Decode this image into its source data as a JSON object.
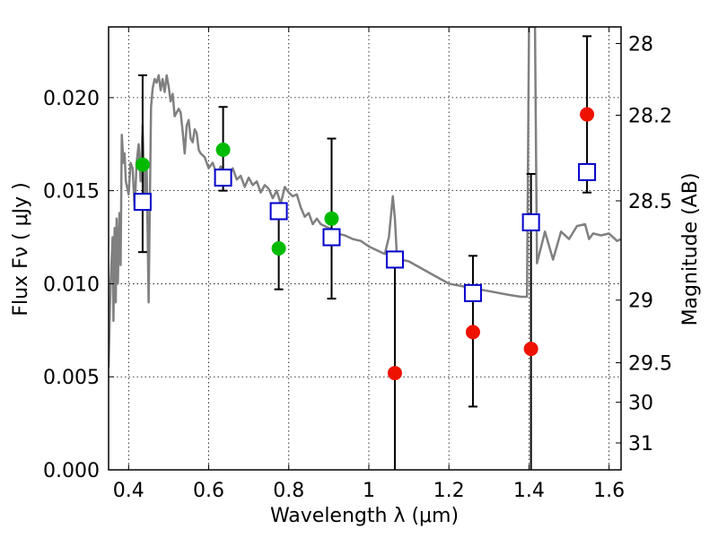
{
  "chart_data": {
    "type": "scatter",
    "x_axis": {
      "label": "Wavelength  λ (μm)",
      "range": [
        0.35,
        1.63
      ],
      "ticks": [
        0.4,
        0.6,
        0.8,
        1.0,
        1.2,
        1.4,
        1.6
      ],
      "tick_labels": [
        "0.4",
        "0.6",
        "0.8",
        "1",
        "1.2",
        "1.4",
        "1.6"
      ]
    },
    "y_axis": {
      "label": "Flux  Fν  ( μJy )",
      "range": [
        0.0,
        0.0238
      ],
      "ticks": [
        0.0,
        0.005,
        0.01,
        0.015,
        0.02
      ],
      "tick_labels": [
        "0.000",
        "0.005",
        "0.010",
        "0.015",
        "0.020"
      ]
    },
    "y2_axis": {
      "label": "Magnitude (AB)",
      "ticks": [
        28,
        28.2,
        28.5,
        29,
        29.5,
        30,
        31
      ],
      "tick_labels": [
        "28",
        "28.2",
        "28.5",
        "29",
        "29.5",
        "30",
        "31"
      ]
    },
    "grid": true,
    "series": [
      {
        "kind": "line",
        "color": "#808080",
        "x": [
          0.35,
          0.355,
          0.36,
          0.362,
          0.365,
          0.368,
          0.37,
          0.373,
          0.377,
          0.38,
          0.383,
          0.387,
          0.39,
          0.393,
          0.396,
          0.4,
          0.405,
          0.41,
          0.415,
          0.42,
          0.425,
          0.43,
          0.435,
          0.44,
          0.445,
          0.45,
          0.453,
          0.456,
          0.46,
          0.465,
          0.47,
          0.475,
          0.48,
          0.485,
          0.49,
          0.495,
          0.5,
          0.505,
          0.51,
          0.515,
          0.52,
          0.525,
          0.53,
          0.535,
          0.54,
          0.545,
          0.55,
          0.555,
          0.56,
          0.565,
          0.57,
          0.575,
          0.58,
          0.59,
          0.6,
          0.61,
          0.62,
          0.63,
          0.64,
          0.65,
          0.66,
          0.67,
          0.68,
          0.69,
          0.7,
          0.71,
          0.72,
          0.73,
          0.74,
          0.75,
          0.76,
          0.77,
          0.78,
          0.79,
          0.8,
          0.81,
          0.82,
          0.83,
          0.84,
          0.85,
          0.86,
          0.87,
          0.88,
          0.9,
          0.92,
          0.94,
          0.96,
          0.98,
          1.0,
          1.02,
          1.04,
          1.05,
          1.06,
          1.065,
          1.07,
          1.08,
          1.1,
          1.15,
          1.2,
          1.25,
          1.3,
          1.35,
          1.38,
          1.39,
          1.395,
          1.4,
          1.405,
          1.41,
          1.415,
          1.42,
          1.44,
          1.46,
          1.48,
          1.5,
          1.52,
          1.54,
          1.55,
          1.56,
          1.58,
          1.6,
          1.62,
          1.63
        ],
        "y": [
          0.0055,
          0.01,
          0.0125,
          0.008,
          0.013,
          0.009,
          0.0135,
          0.01,
          0.0138,
          0.011,
          0.018,
          0.0165,
          0.017,
          0.0155,
          0.0152,
          0.0148,
          0.0165,
          0.0162,
          0.014,
          0.0165,
          0.0175,
          0.0155,
          0.0185,
          0.0145,
          0.0165,
          0.009,
          0.014,
          0.0195,
          0.0205,
          0.021,
          0.0208,
          0.0212,
          0.0204,
          0.021,
          0.0203,
          0.0212,
          0.0206,
          0.0198,
          0.0202,
          0.019,
          0.0192,
          0.0194,
          0.0192,
          0.0182,
          0.017,
          0.0185,
          0.0188,
          0.0178,
          0.0176,
          0.0183,
          0.0181,
          0.0172,
          0.017,
          0.0168,
          0.0162,
          0.0165,
          0.0159,
          0.0163,
          0.016,
          0.0158,
          0.0162,
          0.0156,
          0.0158,
          0.0152,
          0.0157,
          0.0153,
          0.0155,
          0.0149,
          0.0153,
          0.0151,
          0.0146,
          0.015,
          0.0143,
          0.0152,
          0.0149,
          0.0147,
          0.0148,
          0.0141,
          0.0136,
          0.0138,
          0.0132,
          0.0135,
          0.0132,
          0.013,
          0.0127,
          0.0126,
          0.0124,
          0.0123,
          0.012,
          0.0118,
          0.0116,
          0.0125,
          0.0147,
          0.0135,
          0.0115,
          0.0113,
          0.0112,
          0.0106,
          0.01,
          0.0098,
          0.0096,
          0.0094,
          0.0093,
          0.0093,
          0.0093,
          0.0238,
          0.0238,
          0.0238,
          0.0238,
          0.0111,
          0.0128,
          0.0113,
          0.0128,
          0.0124,
          0.0131,
          0.0132,
          0.0124,
          0.0127,
          0.0126,
          0.0127,
          0.0123,
          0.0124
        ]
      },
      {
        "kind": "errorbar_squares",
        "color": "#0000cc",
        "points": [
          {
            "x": 0.435,
            "y": 0.0144,
            "ylo": 0.0117,
            "yhi": 0.0212
          },
          {
            "x": 0.636,
            "y": 0.0157,
            "ylo": 0.015,
            "yhi": 0.0195
          },
          {
            "x": 0.775,
            "y": 0.0139,
            "ylo": 0.0097,
            "yhi": 0.0139
          },
          {
            "x": 0.907,
            "y": 0.0125,
            "ylo": 0.0092,
            "yhi": 0.0178
          },
          {
            "x": 1.065,
            "y": 0.0113,
            "ylo": 0.0,
            "yhi": 0.0115
          },
          {
            "x": 1.26,
            "y": 0.0095,
            "ylo": 0.0034,
            "yhi": 0.0115
          },
          {
            "x": 1.405,
            "y": 0.0133,
            "ylo": 0.0,
            "yhi": 0.0159
          },
          {
            "x": 1.545,
            "y": 0.016,
            "ylo": 0.0149,
            "yhi": 0.0233
          }
        ]
      },
      {
        "kind": "circles",
        "color": "#00bb00",
        "points": [
          {
            "x": 0.435,
            "y": 0.0164
          },
          {
            "x": 0.636,
            "y": 0.0172
          },
          {
            "x": 0.775,
            "y": 0.0119
          },
          {
            "x": 0.907,
            "y": 0.0135
          }
        ]
      },
      {
        "kind": "circles",
        "color": "#ee1100",
        "points": [
          {
            "x": 1.065,
            "y": 0.0052
          },
          {
            "x": 1.26,
            "y": 0.0074
          },
          {
            "x": 1.405,
            "y": 0.0065
          },
          {
            "x": 1.545,
            "y": 0.0191
          }
        ]
      }
    ]
  }
}
